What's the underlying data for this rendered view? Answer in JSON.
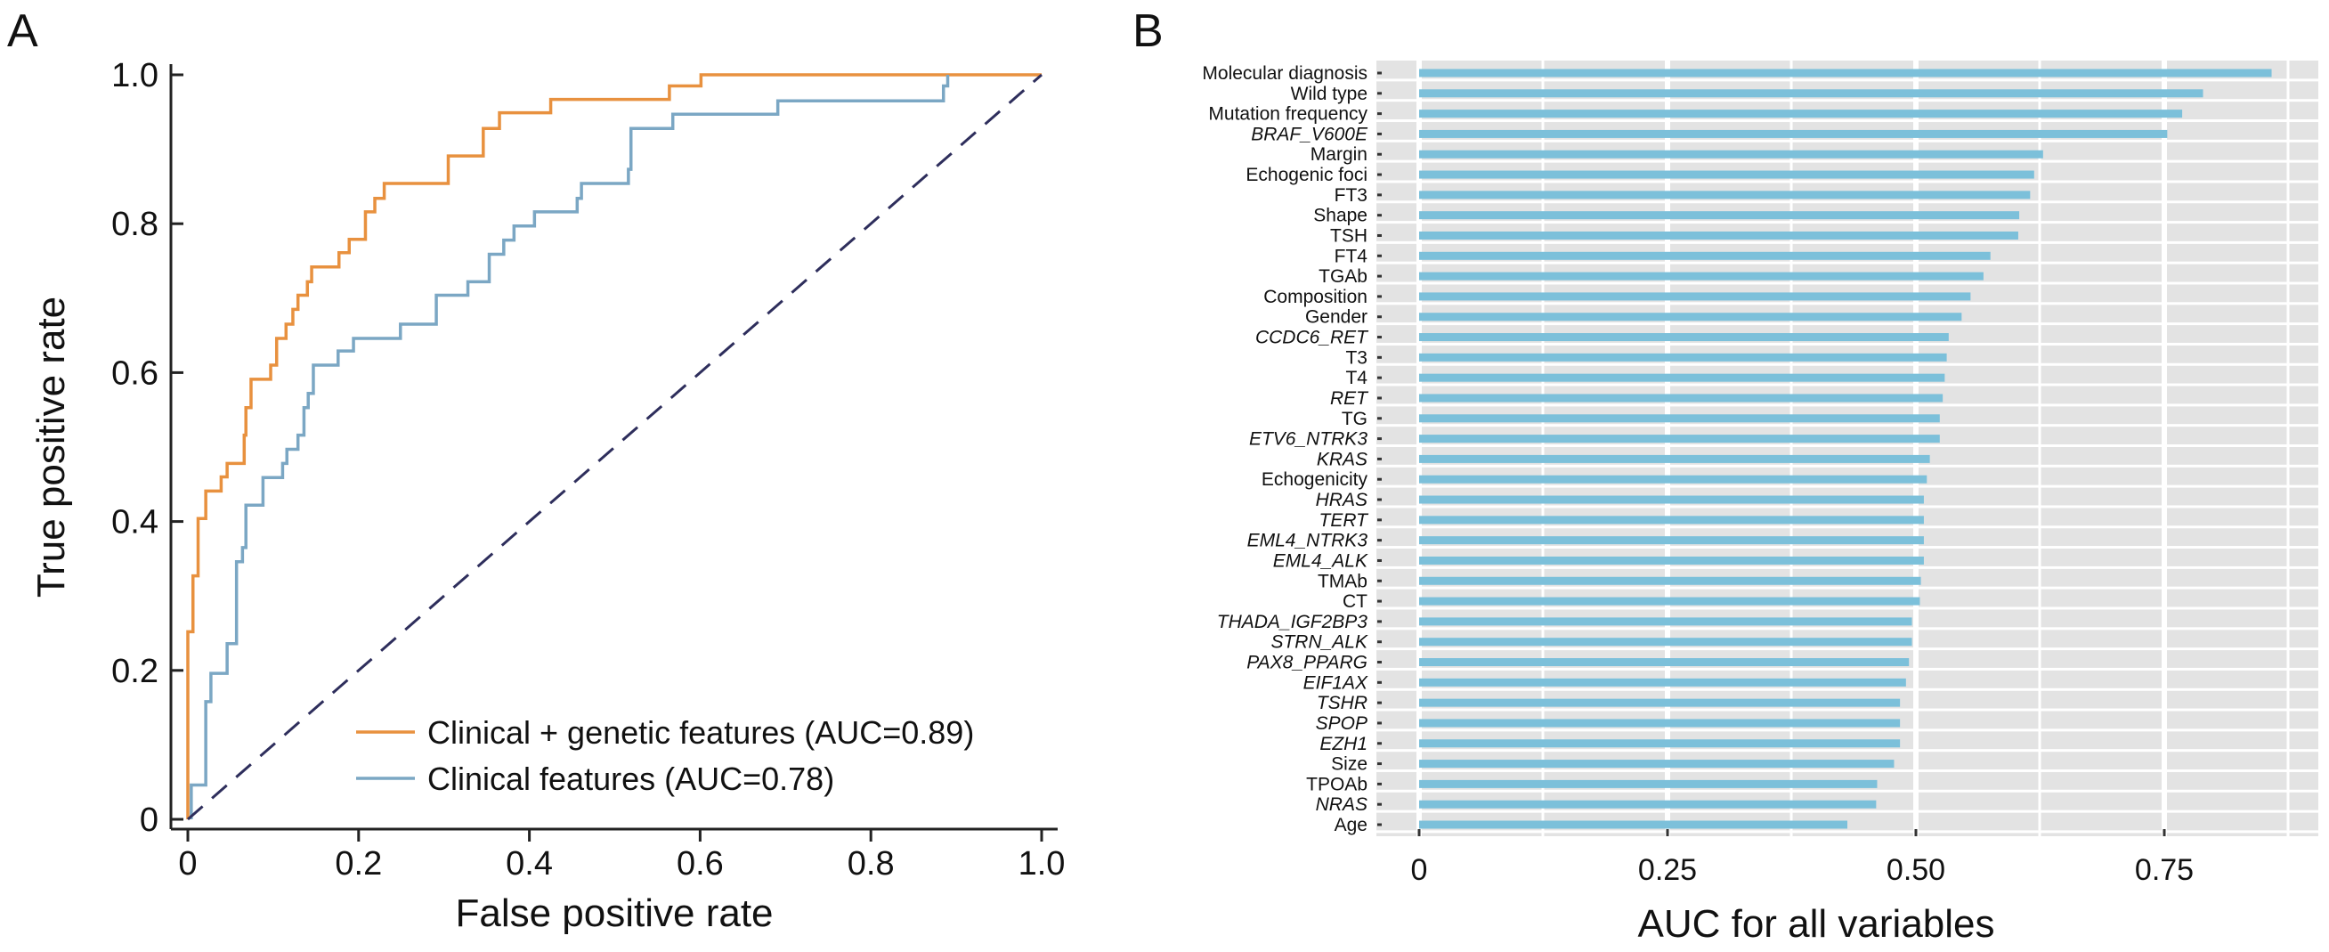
{
  "chart_data": [
    {
      "panel": "A",
      "type": "line",
      "title": "",
      "xlabel": "False positive rate",
      "ylabel": "True positive rate",
      "xlim": [
        0,
        1.0
      ],
      "ylim": [
        0,
        1.0
      ],
      "xticks": [
        "0",
        "0.2",
        "0.4",
        "0.6",
        "0.8",
        "1.0"
      ],
      "yticks": [
        "0",
        "0.2",
        "0.4",
        "0.6",
        "0.8",
        "1.0"
      ],
      "xtick_values": [
        0,
        0.2,
        0.4,
        0.6,
        0.8,
        1.0
      ],
      "ytick_values": [
        0,
        0.2,
        0.4,
        0.6,
        0.8,
        1.0
      ],
      "grid": false,
      "legend_position": "bottom-right",
      "series": [
        {
          "name": "Clinical + genetic features (AUC=0.89)",
          "color": "#E8913F",
          "step": true,
          "fpr": [
            0,
            0.006,
            0.012,
            0.021,
            0.039,
            0.046,
            0.066,
            0.068,
            0.074,
            0.097,
            0.104,
            0.115,
            0.123,
            0.129,
            0.14,
            0.145,
            0.177,
            0.189,
            0.208,
            0.219,
            0.23,
            0.305,
            0.346,
            0.365,
            0.425,
            0.564,
            0.601,
            1.0
          ],
          "tpr": [
            0.252,
            0.327,
            0.404,
            0.441,
            0.46,
            0.478,
            0.516,
            0.553,
            0.591,
            0.61,
            0.646,
            0.665,
            0.685,
            0.704,
            0.722,
            0.742,
            0.761,
            0.779,
            0.816,
            0.834,
            0.854,
            0.891,
            0.928,
            0.949,
            0.967,
            0.985,
            1.0,
            1.0
          ]
        },
        {
          "name": "Clinical features (AUC=0.78)",
          "color": "#7BA7C4",
          "step": true,
          "fpr": [
            0.004,
            0.021,
            0.027,
            0.046,
            0.057,
            0.064,
            0.068,
            0.088,
            0.111,
            0.116,
            0.129,
            0.136,
            0.141,
            0.147,
            0.176,
            0.194,
            0.249,
            0.291,
            0.328,
            0.353,
            0.37,
            0.382,
            0.406,
            0.456,
            0.461,
            0.516,
            0.519,
            0.568,
            0.691,
            0.885,
            0.89
          ],
          "tpr": [
            0.046,
            0.158,
            0.196,
            0.236,
            0.346,
            0.365,
            0.422,
            0.459,
            0.478,
            0.497,
            0.516,
            0.553,
            0.572,
            0.61,
            0.629,
            0.646,
            0.665,
            0.704,
            0.722,
            0.759,
            0.778,
            0.797,
            0.816,
            0.834,
            0.854,
            0.873,
            0.928,
            0.947,
            0.965,
            0.985,
            1.0
          ]
        },
        {
          "name": "Chance (diagonal reference)",
          "color": "#2E2E5C",
          "dashed": true,
          "fpr": [
            0,
            1.0
          ],
          "tpr": [
            0,
            1.0
          ]
        }
      ]
    },
    {
      "panel": "B",
      "type": "bar",
      "orientation": "horizontal",
      "title": "",
      "xlabel": "AUC for all variables",
      "ylabel": "",
      "xlim": [
        0,
        0.9
      ],
      "xticks": [
        "0",
        "0.25",
        "0.50",
        "0.75"
      ],
      "xtick_values": [
        0,
        0.25,
        0.5,
        0.75
      ],
      "minor_gridlines": [
        0.125,
        0.375,
        0.625,
        0.875
      ],
      "grid": true,
      "background": "#E3E3E3",
      "bar_color": "#7CC0DA",
      "categories": [
        "Molecular diagnosis",
        "Wild type",
        "Mutation frequency",
        "BRAF_V600E",
        "Margin",
        "Echogenic foci",
        "FT3",
        "Shape",
        "TSH",
        "FT4",
        "TGAb",
        "Composition",
        "Gender",
        "CCDC6_RET",
        "T3",
        "T4",
        "RET",
        "TG",
        "ETV6_NTRK3",
        "KRAS",
        "Echogenicity",
        "HRAS",
        "TERT",
        "EML4_NTRK3",
        "EML4_ALK",
        "TMAb",
        "CT",
        "THADA_IGF2BP3",
        "STRN_ALK",
        "PAX8_PPARG",
        "EIF1AX",
        "TSHR",
        "SPOP",
        "EZH1",
        "Size",
        "TPOAb",
        "NRAS",
        "Age"
      ],
      "italic": [
        false,
        false,
        false,
        true,
        false,
        false,
        false,
        false,
        false,
        false,
        false,
        false,
        false,
        true,
        false,
        false,
        true,
        false,
        true,
        true,
        false,
        true,
        true,
        true,
        true,
        false,
        false,
        true,
        true,
        true,
        true,
        true,
        true,
        true,
        false,
        false,
        true,
        false
      ],
      "values": [
        0.858,
        0.789,
        0.768,
        0.753,
        0.628,
        0.619,
        0.615,
        0.604,
        0.603,
        0.575,
        0.568,
        0.555,
        0.546,
        0.533,
        0.531,
        0.529,
        0.527,
        0.524,
        0.524,
        0.514,
        0.511,
        0.508,
        0.508,
        0.508,
        0.508,
        0.505,
        0.504,
        0.496,
        0.496,
        0.493,
        0.49,
        0.484,
        0.484,
        0.484,
        0.478,
        0.461,
        0.46,
        0.431
      ]
    }
  ],
  "panels": {
    "a_label": "A",
    "b_label": "B"
  }
}
